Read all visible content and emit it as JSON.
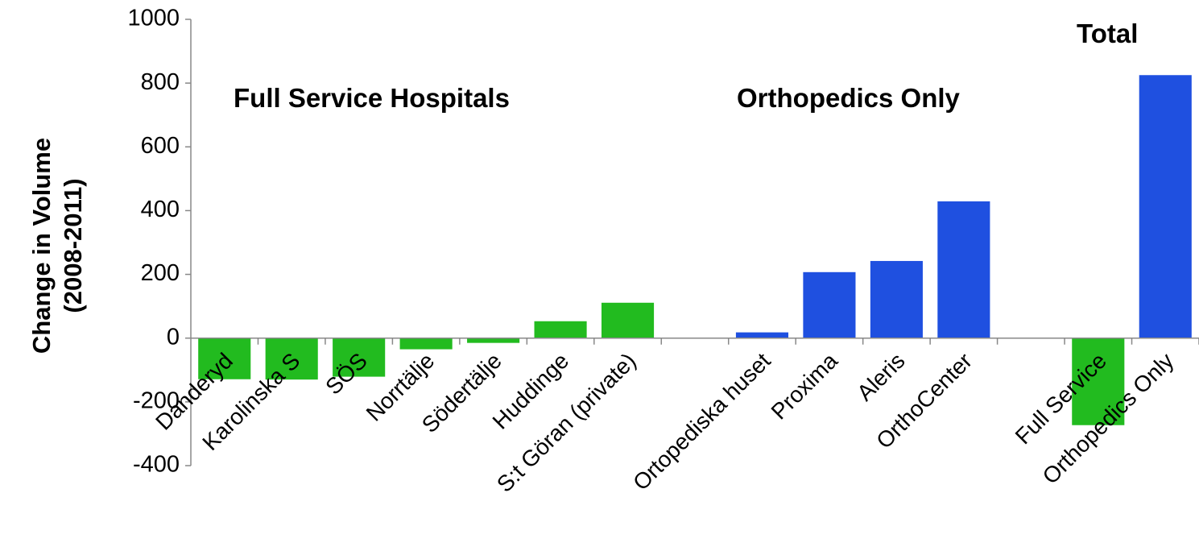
{
  "chart_data": {
    "type": "bar",
    "categories": [
      "Danderyd",
      "Karolinska S",
      "SÖS",
      "Norrtälje",
      "Södertälje",
      "Huddinge",
      "S:t Göran (private)",
      null,
      "Ortopediska huset",
      "Proxima",
      "Aleris",
      "OrthoCenter",
      null,
      "Full Service",
      "Orthopedics Only"
    ],
    "values": [
      -129,
      -130,
      -121,
      -35,
      -15,
      53,
      111,
      null,
      18,
      207,
      242,
      429,
      null,
      -273,
      825
    ],
    "colors": [
      "#22bb1f",
      "#22bb1f",
      "#22bb1f",
      "#22bb1f",
      "#22bb1f",
      "#22bb1f",
      "#22bb1f",
      null,
      "#1f50e0",
      "#1f50e0",
      "#1f50e0",
      "#1f50e0",
      null,
      "#22bb1f",
      "#1f50e0"
    ],
    "y_label": [
      "Change in Volume",
      "(2008-2011)"
    ],
    "annotations": [
      "Full Service Hospitals",
      "Orthopedics Only",
      "Total"
    ],
    "ylim": [
      -400,
      1000
    ],
    "yticks": [
      -400,
      -200,
      0,
      200,
      400,
      600,
      800,
      1000
    ]
  }
}
